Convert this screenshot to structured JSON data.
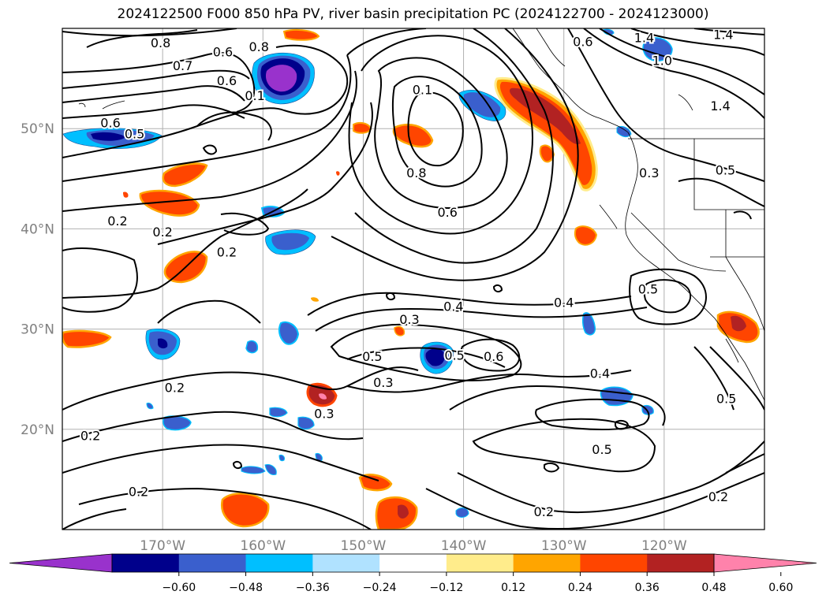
{
  "title": "2024122500 F000 850 hPa PV, river basin precipitation PC (2024122700 - 2024123000)",
  "map": {
    "lon_range": [
      -180,
      -110
    ],
    "lat_range": [
      10,
      60
    ],
    "lon_ticks": [
      {
        "value": -170,
        "label": "170°W"
      },
      {
        "value": -160,
        "label": "160°W"
      },
      {
        "value": -150,
        "label": "150°W"
      },
      {
        "value": -140,
        "label": "140°W"
      },
      {
        "value": -130,
        "label": "130°W"
      },
      {
        "value": -120,
        "label": "120°W"
      }
    ],
    "lat_ticks": [
      {
        "value": 20,
        "label": "20°N"
      },
      {
        "value": 30,
        "label": "30°N"
      },
      {
        "value": 40,
        "label": "40°N"
      },
      {
        "value": 50,
        "label": "50°N"
      }
    ],
    "tick_label_color": "#808080",
    "gridline_color": "#b0b0b0",
    "contour_labels": [
      {
        "text": "0.8",
        "lon": -170.2,
        "lat": 58.6
      },
      {
        "text": "0.7",
        "lon": -168.0,
        "lat": 56.3
      },
      {
        "text": "0.6",
        "lon": -164.0,
        "lat": 57.7
      },
      {
        "text": "0.8",
        "lon": -160.4,
        "lat": 58.2
      },
      {
        "text": "0.6",
        "lon": -163.6,
        "lat": 54.8
      },
      {
        "text": "0.1",
        "lon": -160.8,
        "lat": 53.3
      },
      {
        "text": "0.6",
        "lon": -175.2,
        "lat": 50.6
      },
      {
        "text": "0.5",
        "lon": -172.8,
        "lat": 49.5
      },
      {
        "text": "0.1",
        "lon": -144.1,
        "lat": 53.9
      },
      {
        "text": "0.8",
        "lon": -144.7,
        "lat": 45.6
      },
      {
        "text": "0.6",
        "lon": -141.6,
        "lat": 41.7
      },
      {
        "text": "0.2",
        "lon": -174.5,
        "lat": 40.8
      },
      {
        "text": "0.2",
        "lon": -170.0,
        "lat": 39.7
      },
      {
        "text": "0.2",
        "lon": -163.6,
        "lat": 37.7
      },
      {
        "text": "0.4",
        "lon": -141.0,
        "lat": 32.3
      },
      {
        "text": "0.3",
        "lon": -145.4,
        "lat": 31.0
      },
      {
        "text": "0.4",
        "lon": -130.0,
        "lat": 32.7
      },
      {
        "text": "0.5",
        "lon": -121.6,
        "lat": 34.0
      },
      {
        "text": "0.5",
        "lon": -149.1,
        "lat": 27.3
      },
      {
        "text": "0.5",
        "lon": -140.9,
        "lat": 27.4
      },
      {
        "text": "0.6",
        "lon": -137.0,
        "lat": 27.3
      },
      {
        "text": "0.3",
        "lon": -148.0,
        "lat": 24.7
      },
      {
        "text": "0.4",
        "lon": -126.4,
        "lat": 25.6
      },
      {
        "text": "0.2",
        "lon": -168.8,
        "lat": 24.2
      },
      {
        "text": "0.3",
        "lon": -153.9,
        "lat": 21.6
      },
      {
        "text": "0.2",
        "lon": -177.2,
        "lat": 19.4
      },
      {
        "text": "0.5",
        "lon": -126.2,
        "lat": 18.0
      },
      {
        "text": "0.5",
        "lon": -113.8,
        "lat": 23.1
      },
      {
        "text": "0.2",
        "lon": -172.4,
        "lat": 13.8
      },
      {
        "text": "0.2",
        "lon": -132.0,
        "lat": 11.8
      },
      {
        "text": "0.2",
        "lon": -114.6,
        "lat": 13.3
      },
      {
        "text": "0.3",
        "lon": -121.5,
        "lat": 45.6
      },
      {
        "text": "1.4",
        "lon": -122.0,
        "lat": 59.1
      },
      {
        "text": "1.0",
        "lon": -120.2,
        "lat": 56.8
      },
      {
        "text": "1.4",
        "lon": -114.1,
        "lat": 59.4
      },
      {
        "text": "1.4",
        "lon": -114.4,
        "lat": 52.3
      },
      {
        "text": "0.5",
        "lon": -113.9,
        "lat": 45.9
      },
      {
        "text": "0.6",
        "lon": -128.1,
        "lat": 58.7
      }
    ]
  },
  "colorbar": {
    "ticks": [
      "−0.60",
      "−0.48",
      "−0.36",
      "−0.24",
      "−0.12",
      "0.12",
      "0.24",
      "0.36",
      "0.48",
      "0.60"
    ],
    "colors": [
      "#9932cc",
      "#00008b",
      "#3a5fcd",
      "#00bfff",
      "#b0e2ff",
      "#ffffff",
      "#ffec8b",
      "#ffa500",
      "#ff4500",
      "#b22222",
      "#ff82ab"
    ]
  }
}
